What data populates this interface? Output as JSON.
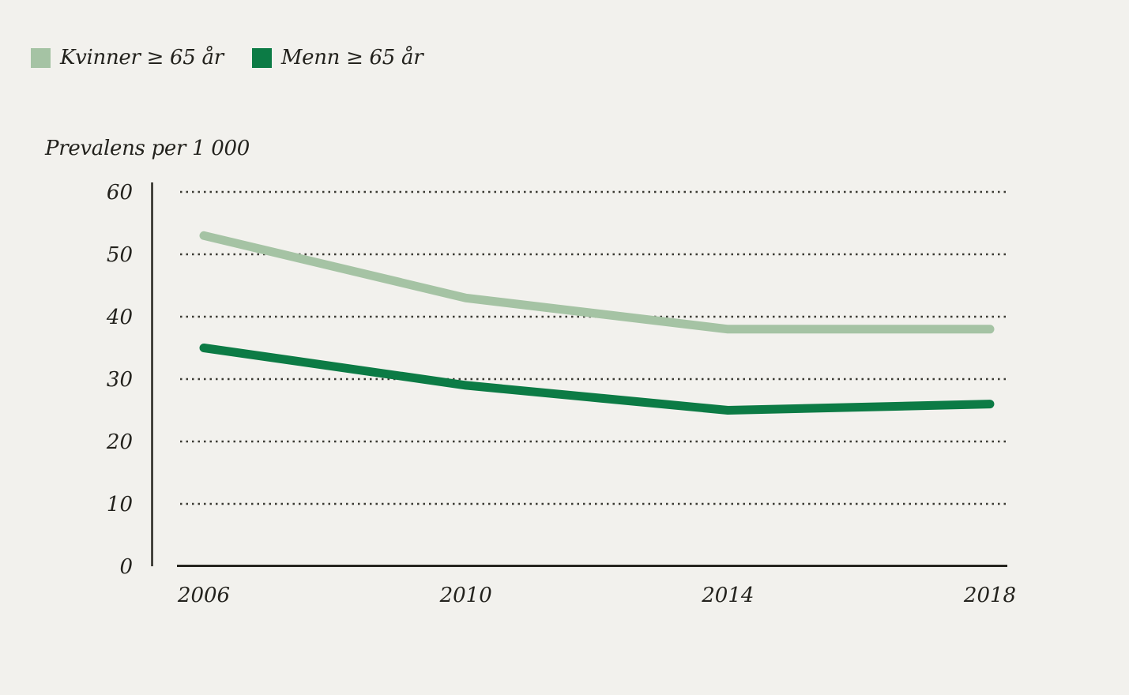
{
  "figure": {
    "background_color": "#f2f1ed",
    "text_color": "#23221d",
    "axis_color": "#26251f",
    "gridline_color": "#3b3a33"
  },
  "legend": {
    "position": "top-left",
    "items": [
      {
        "label": "Kvinner ≥ 65 år",
        "swatch_color": "#a5c3a4"
      },
      {
        "label": "Menn ≥ 65 år",
        "swatch_color": "#0c7b45"
      }
    ]
  },
  "chart_data": {
    "type": "line",
    "title": "",
    "xlabel": "",
    "ylabel": "Prevalens per 1 000",
    "x": [
      2006,
      2010,
      2014,
      2018
    ],
    "x_tick_labels": [
      "2006",
      "2010",
      "2014",
      "2018"
    ],
    "y_ticks": [
      0,
      10,
      20,
      30,
      40,
      50,
      60
    ],
    "ylim": [
      0,
      60
    ],
    "xlim": [
      2006,
      2018
    ],
    "grid": "horizontal-dotted",
    "legend_position": "top-left",
    "series": [
      {
        "name": "Kvinner ≥ 65 år",
        "color": "#a5c3a4",
        "values": [
          53,
          43,
          38,
          38
        ]
      },
      {
        "name": "Menn ≥ 65 år",
        "color": "#0c7b45",
        "values": [
          35,
          29,
          25,
          26
        ]
      }
    ]
  }
}
